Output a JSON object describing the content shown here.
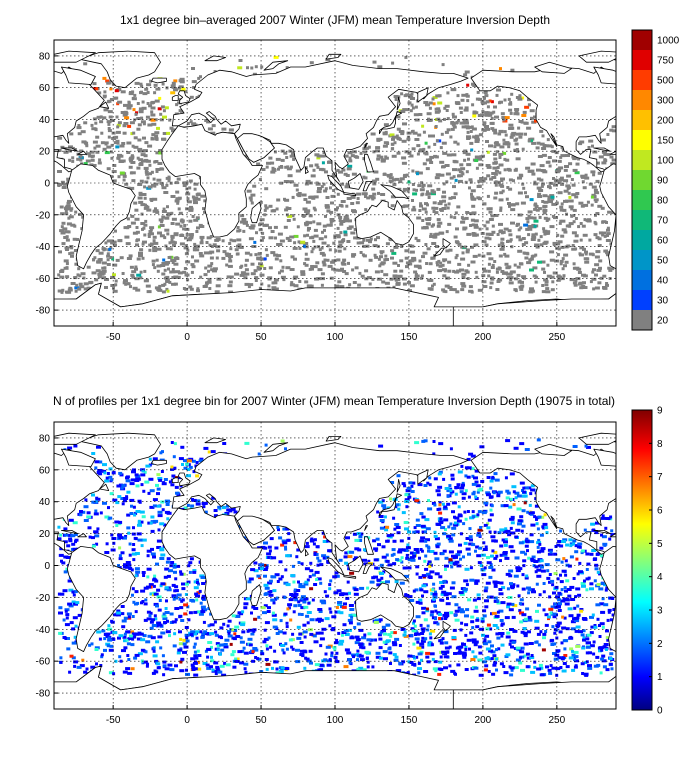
{
  "panels": [
    {
      "id": "top",
      "title": "1x1 degree bin–averaged 2007 Winter (JFM) mean Temperature Inversion Depth",
      "x_ticks": [
        -50,
        0,
        50,
        100,
        150,
        200,
        250
      ],
      "y_ticks": [
        -80,
        -60,
        -40,
        -20,
        0,
        20,
        40,
        60,
        80
      ],
      "xlim": [
        -90,
        290
      ],
      "ylim": [
        -90,
        90
      ],
      "colorbar_labels": [
        "20",
        "30",
        "40",
        "50",
        "60",
        "70",
        "80",
        "90",
        "100",
        "150",
        "200",
        "300",
        "500",
        "750",
        "1000"
      ],
      "colorbar_colors": [
        "#808080",
        "#0040ff",
        "#0070e0",
        "#0095c8",
        "#00a8a0",
        "#10b878",
        "#30c850",
        "#70d830",
        "#c0e820",
        "#ffff00",
        "#ffc000",
        "#ff8800",
        "#ff3c00",
        "#e00000",
        "#a00000"
      ]
    },
    {
      "id": "bottom",
      "title": "N of profiles per 1x1 degree bin for 2007 Winter (JFM) mean Temperature Inversion Depth  (19075 in total)",
      "x_ticks": [
        -50,
        0,
        50,
        100,
        150,
        200,
        250
      ],
      "y_ticks": [
        -80,
        -60,
        -40,
        -20,
        0,
        20,
        40,
        60,
        80
      ],
      "xlim": [
        -90,
        290
      ],
      "ylim": [
        -90,
        90
      ],
      "colorbar_labels": [
        "0",
        "1",
        "2",
        "3",
        "4",
        "5",
        "6",
        "7",
        "8",
        "9"
      ],
      "colorbar_range": [
        0,
        9
      ]
    }
  ]
}
